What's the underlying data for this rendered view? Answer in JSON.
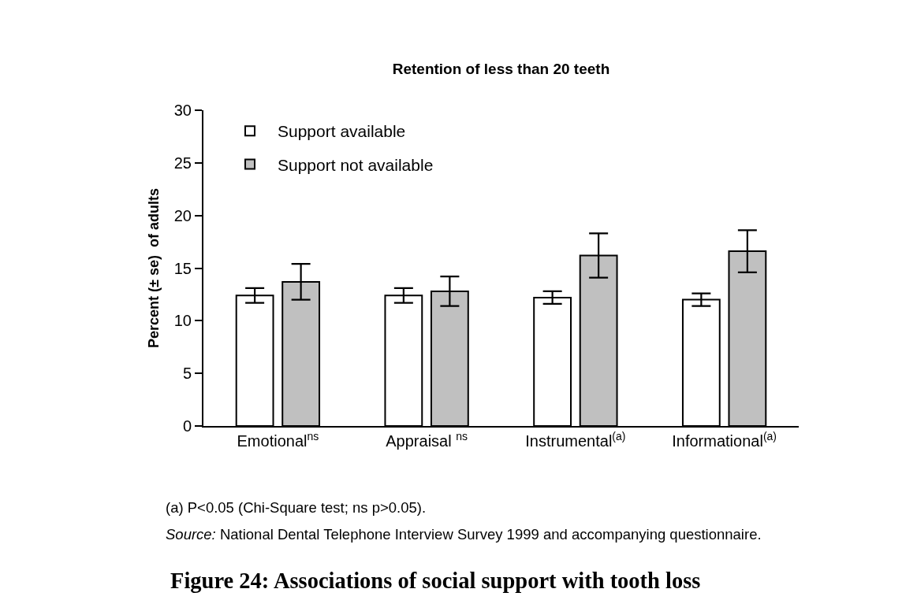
{
  "chart_data": {
    "type": "bar",
    "title": "Retention of less than 20 teeth",
    "ylabel": "Percent (± se)  of adults",
    "categories": [
      "Emotional$^{ns}$",
      "Appraisal $^{ns}$",
      "Instrumental$^{(a)}$",
      "Informational$^{(a)}$"
    ],
    "series": [
      {
        "name": "Support available",
        "color": "#ffffff",
        "values": [
          12.4,
          12.4,
          12.2,
          12.0
        ],
        "errors": [
          0.7,
          0.7,
          0.6,
          0.6
        ]
      },
      {
        "name": "Support not available",
        "color": "#c0c0c0",
        "values": [
          13.7,
          12.8,
          16.2,
          16.6
        ],
        "errors": [
          1.7,
          1.4,
          2.1,
          2.0
        ]
      }
    ],
    "ylim": [
      0,
      30
    ],
    "yticks": [
      0,
      5,
      10,
      15,
      20,
      25,
      30
    ],
    "grid": false,
    "legend": "top left",
    "annotations": [
      "(a) P<0.05 (Chi-Square test; ns p>0.05).",
      "Source: National Dental Telephone Interview Survey 1999 and accompanying questionnaire.",
      "Figure 24: Associations of social support with tooth loss"
    ]
  }
}
